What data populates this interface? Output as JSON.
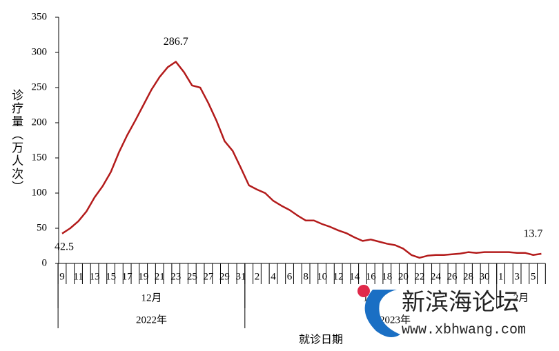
{
  "chart_data": {
    "type": "line",
    "y_label": "诊疗量（万人次）",
    "x_label": "就诊日期",
    "categories": [
      "9",
      null,
      "11",
      null,
      "13",
      null,
      "15",
      null,
      "17",
      null,
      "19",
      null,
      "21",
      null,
      "23",
      null,
      "25",
      null,
      "27",
      null,
      "29",
      null,
      "31",
      null,
      "2",
      null,
      "4",
      null,
      "6",
      null,
      "8",
      null,
      "10",
      null,
      "12",
      null,
      "14",
      null,
      "16",
      null,
      "18",
      null,
      "20",
      null,
      "22",
      null,
      "24",
      null,
      "26",
      null,
      "28",
      null,
      "30",
      null,
      "1",
      null,
      "3",
      null,
      "5",
      null
    ],
    "months": [
      "12月",
      "1月",
      "2月"
    ],
    "years": [
      "2022年",
      "2023年"
    ],
    "series": [
      {
        "color": "#b31b1b",
        "values": [
          42.5,
          50,
          60,
          74,
          94,
          110,
          130,
          158,
          182,
          203,
          225,
          247,
          265,
          279,
          286.7,
          272,
          253,
          250,
          228,
          203,
          174,
          160,
          136,
          111,
          105,
          100,
          89,
          82,
          76,
          68,
          61,
          61,
          56,
          52,
          47,
          43,
          37,
          32,
          34,
          31,
          28,
          26,
          21,
          12,
          8,
          11,
          12,
          12,
          13,
          14,
          16,
          15,
          16,
          16,
          16,
          16,
          15,
          15,
          12,
          13.7
        ],
        "value_labels": [
          "42.5",
          null,
          null,
          null,
          null,
          null,
          null,
          null,
          null,
          null,
          null,
          null,
          null,
          null,
          "286.7",
          null,
          null,
          null,
          null,
          null,
          null,
          null,
          null,
          null,
          null,
          null,
          null,
          null,
          null,
          null,
          null,
          null,
          null,
          null,
          null,
          null,
          null,
          null,
          null,
          null,
          null,
          null,
          null,
          null,
          null,
          null,
          null,
          null,
          null,
          null,
          null,
          null,
          null,
          null,
          null,
          null,
          null,
          null,
          null,
          "13.7"
        ]
      }
    ],
    "ylim": [
      0,
      350
    ],
    "yticks": [
      0,
      50,
      100,
      150,
      200,
      250,
      300,
      350
    ],
    "watermark": {
      "name": "新滨海论坛",
      "url": "www.xbhwang.com"
    }
  }
}
